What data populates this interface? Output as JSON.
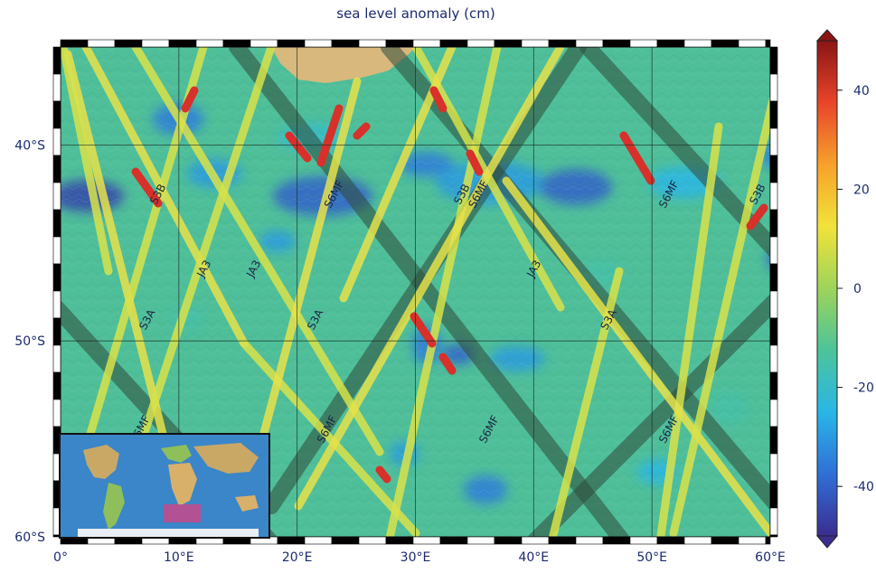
{
  "title": "sea level anomaly (cm)",
  "map": {
    "lon_range": [
      0,
      60
    ],
    "lat_range": [
      -60,
      -35
    ],
    "gridlines": true,
    "lon_ticks": [
      "0°",
      "10°E",
      "20°E",
      "30°E",
      "40°E",
      "50°E",
      "60°E"
    ],
    "lat_ticks": [
      "40°S",
      "50°S",
      "60°S"
    ],
    "track_labels": [
      {
        "text": "S3B",
        "lon": 8.5,
        "lat": -42.6
      },
      {
        "text": "JA3",
        "lon": 12.4,
        "lat": -46.4
      },
      {
        "text": "JA3",
        "lon": 16.6,
        "lat": -46.4
      },
      {
        "text": "S3A",
        "lon": 7.6,
        "lat": -49.0
      },
      {
        "text": "S6MF",
        "lon": 23.4,
        "lat": -42.6
      },
      {
        "text": "S3A",
        "lon": 21.8,
        "lat": -49.0
      },
      {
        "text": "S6MF",
        "lon": 7.0,
        "lat": -54.6
      },
      {
        "text": "S6MF",
        "lon": 22.8,
        "lat": -54.6
      },
      {
        "text": "S3B",
        "lon": 34.2,
        "lat": -42.6
      },
      {
        "text": "S6MF",
        "lon": 35.6,
        "lat": -42.6
      },
      {
        "text": "JA3",
        "lon": 40.3,
        "lat": -46.4
      },
      {
        "text": "S6MF",
        "lon": 36.5,
        "lat": -54.6
      },
      {
        "text": "S3A",
        "lon": 46.6,
        "lat": -49.0
      },
      {
        "text": "S6MF",
        "lon": 51.7,
        "lat": -42.6
      },
      {
        "text": "S6MF",
        "lon": 51.7,
        "lat": -54.6
      },
      {
        "text": "S3B",
        "lon": 59.2,
        "lat": -42.6
      }
    ],
    "colors": {
      "ocean_base": "#4fbf9a",
      "frame": "#111111",
      "land": "#d8b87c",
      "track_dark": "#2f4a3a"
    }
  },
  "colorbar": {
    "min": -50,
    "max": 50,
    "ticks": [
      40,
      20,
      0,
      -20,
      -40
    ],
    "tick_labels": [
      "40",
      "20",
      "0",
      "-20",
      "-40"
    ],
    "stops": [
      "#3b2d8f",
      "#2f6fd8",
      "#29b6e6",
      "#4cc49a",
      "#9ed45a",
      "#f1e33a",
      "#f7a12b",
      "#e8452a",
      "#8a1414"
    ]
  },
  "inset": {
    "content": "world map with highlighted study region",
    "highlight_color": "#c8488a"
  }
}
